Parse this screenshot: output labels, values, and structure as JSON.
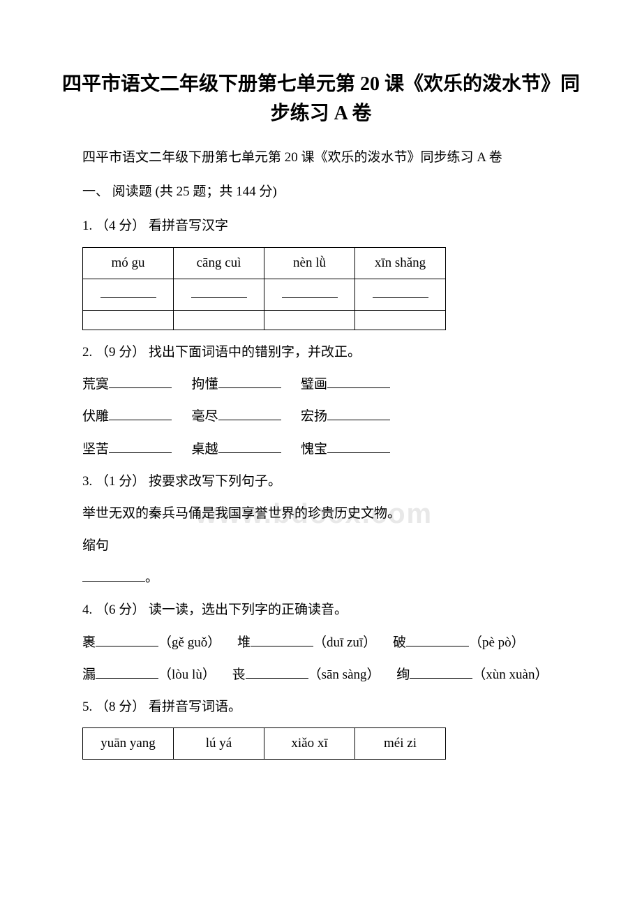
{
  "title": "四平市语文二年级下册第七单元第 20 课《欢乐的泼水节》同步练习 A 卷",
  "subtitle": "四平市语文二年级下册第七单元第 20 课《欢乐的泼水节》同步练习 A 卷",
  "section1": "一、 阅读题 (共 25 题；共 144 分)",
  "q1": {
    "header": "1. （4 分） 看拼音写汉字",
    "cells": [
      "mó  gu",
      "cāng  cuì",
      "nèn  lǜ",
      "xīn  shǎng"
    ]
  },
  "q2": {
    "header": "2. （9 分） 找出下面词语中的错别字，并改正。",
    "row1": [
      "荒寞",
      "拘懂",
      "璧画"
    ],
    "row2": [
      "伏雕",
      "毫尽",
      "宏扬"
    ],
    "row3": [
      "坚苦",
      "桌越",
      "愧宝"
    ]
  },
  "q3": {
    "header": "3. （1 分） 按要求改写下列句子。",
    "line1": "举世无双的秦兵马俑是我国享誉世界的珍贵历史文物。",
    "line2": "缩句",
    "period": "。"
  },
  "q4": {
    "header": "4. （6 分） 读一读，选出下列字的正确读音。",
    "row1": [
      {
        "char": "裹",
        "pinyin": "（gě  guǒ）"
      },
      {
        "char": "堆",
        "pinyin": "（duī  zuī）"
      },
      {
        "char": "破",
        "pinyin": "（pè  pò）"
      }
    ],
    "row2": [
      {
        "char": "漏",
        "pinyin": "（lòu  lù）"
      },
      {
        "char": "丧",
        "pinyin": "（sān  sàng）"
      },
      {
        "char": "绚",
        "pinyin": "（xùn  xuàn）"
      }
    ]
  },
  "q5": {
    "header": "5. （8 分） 看拼音写词语。",
    "cells": [
      "yuān  yang",
      "lú  yá",
      "xiǎo  xī",
      "méi  zi"
    ]
  },
  "watermark": "www.bdocx.com"
}
